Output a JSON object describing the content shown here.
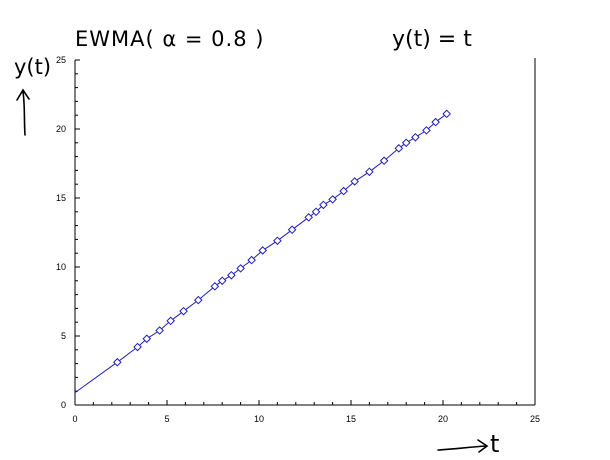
{
  "chart_data": {
    "type": "line",
    "annotations": {
      "title_left": "EWMA( α = 0.8 )",
      "title_right": "y(t) = t"
    },
    "ylabel": "y(t)",
    "xlabel": "t",
    "xlim": [
      0,
      25
    ],
    "ylim": [
      0,
      25
    ],
    "x_ticks": [
      0,
      5,
      10,
      15,
      20,
      25
    ],
    "y_ticks": [
      0,
      5,
      10,
      15,
      20,
      25
    ],
    "grid": false,
    "marker": "diamond",
    "colors": {
      "series": "#1f1fb8",
      "axes": "#000000"
    },
    "series": [
      {
        "x": [
          0.0,
          2.3,
          3.4,
          3.9,
          4.6,
          5.2,
          5.9,
          6.7,
          7.6,
          8.0,
          8.5,
          9.0,
          9.6,
          10.2,
          11.0,
          11.8,
          12.7,
          13.1,
          13.5,
          14.0,
          14.6,
          15.2,
          16.0,
          16.8,
          17.6,
          18.0,
          18.5,
          19.1,
          19.6,
          20.2
        ],
        "y": [
          0.9,
          3.1,
          4.2,
          4.8,
          5.4,
          6.1,
          6.8,
          7.6,
          8.6,
          9.0,
          9.4,
          9.9,
          10.5,
          11.2,
          11.9,
          12.7,
          13.6,
          14.0,
          14.5,
          14.9,
          15.5,
          16.2,
          16.9,
          17.7,
          18.6,
          19.0,
          19.4,
          19.9,
          20.5,
          21.1
        ]
      }
    ]
  }
}
